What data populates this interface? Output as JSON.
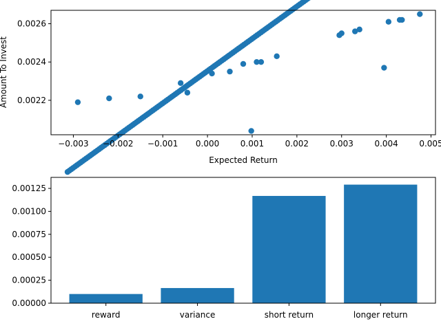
{
  "chart_data": [
    {
      "type": "scatter",
      "title": "",
      "xlabel": "Expected Return",
      "ylabel": "Amount To Invest",
      "xlim": [
        -0.0035,
        0.0051
      ],
      "ylim": [
        0.00202,
        0.00267
      ],
      "xticks": [
        -0.003,
        -0.002,
        -0.001,
        0.0,
        0.001,
        0.002,
        0.003,
        0.004,
        0.005
      ],
      "xtick_labels": [
        "−0.003",
        "−0.002",
        "−0.001",
        "0.000",
        "0.001",
        "0.002",
        "0.003",
        "0.004",
        "0.005"
      ],
      "yticks": [
        0.0022,
        0.0024,
        0.0026
      ],
      "ytick_labels": [
        "0.0022",
        "0.0024",
        "0.0026"
      ],
      "color": "#1f77b4",
      "trend_line": {
        "x_start": -0.00313,
        "x_end": 0.00265,
        "slope": 0.1685,
        "intercept": 0.002353,
        "points": 140
      },
      "points": [
        {
          "x": -0.0029,
          "y": 0.00219
        },
        {
          "x": -0.0022,
          "y": 0.00221
        },
        {
          "x": -0.0015,
          "y": 0.00222
        },
        {
          "x": -0.0006,
          "y": 0.00229
        },
        {
          "x": -0.00045,
          "y": 0.00224
        },
        {
          "x": 0.0001,
          "y": 0.00234
        },
        {
          "x": 0.0005,
          "y": 0.00235
        },
        {
          "x": 0.0008,
          "y": 0.00239
        },
        {
          "x": 0.0011,
          "y": 0.0024
        },
        {
          "x": 0.0012,
          "y": 0.0024
        },
        {
          "x": 0.00155,
          "y": 0.00243
        },
        {
          "x": 0.00098,
          "y": 0.00204
        },
        {
          "x": 0.00295,
          "y": 0.00254
        },
        {
          "x": 0.003,
          "y": 0.00255
        },
        {
          "x": 0.0033,
          "y": 0.00256
        },
        {
          "x": 0.0034,
          "y": 0.00257
        },
        {
          "x": 0.00395,
          "y": 0.00237
        },
        {
          "x": 0.00405,
          "y": 0.00261
        },
        {
          "x": 0.0043,
          "y": 0.00262
        },
        {
          "x": 0.00435,
          "y": 0.00262
        },
        {
          "x": 0.00475,
          "y": 0.00265
        }
      ]
    },
    {
      "type": "bar",
      "title": "",
      "xlabel": "",
      "ylabel": "",
      "categories": [
        "reward",
        "variance",
        "short return",
        "longer return"
      ],
      "values": [
        0.0001,
        0.000165,
        0.001168,
        0.001291
      ],
      "ylim": [
        0,
        0.00137
      ],
      "yticks": [
        0,
        0.00025,
        0.0005,
        0.00075,
        0.001,
        0.00125
      ],
      "ytick_labels": [
        "0.00000",
        "0.00025",
        "0.00050",
        "0.00075",
        "0.00100",
        "0.00125"
      ],
      "color": "#1f77b4"
    }
  ]
}
